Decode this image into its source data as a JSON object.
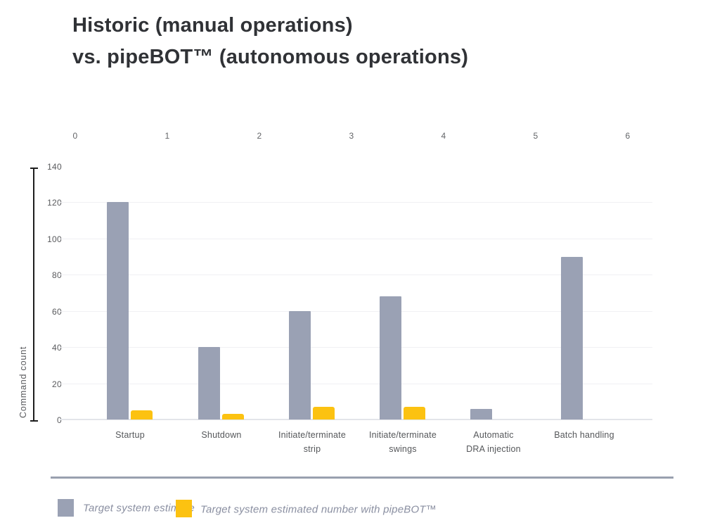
{
  "title": {
    "line1": "Historic (manual operations)",
    "line2": "vs. pipeBOT™ (autonomous operations)"
  },
  "chart_data": {
    "type": "bar",
    "title": "Historic (manual operations) vs. pipeBOT™ (autonomous operations)",
    "categories": [
      "Startup",
      "Shutdown",
      "Initiate/terminate strip",
      "Initiate/terminate swings",
      "Automatic DRA injection",
      "Batch handling"
    ],
    "category_display": [
      [
        "Startup"
      ],
      [
        "Shutdown"
      ],
      [
        "Initiate/terminate",
        "strip"
      ],
      [
        "Initiate/terminate",
        "swings"
      ],
      [
        "Automatic",
        "DRA injection"
      ],
      [
        "Batch handling"
      ]
    ],
    "series": [
      {
        "name": "Target system estimate",
        "color": "#9aa1b4",
        "values": [
          120,
          40,
          60,
          68,
          6,
          90
        ]
      },
      {
        "name": "Target system estimated number with pipeBOT™",
        "color": "#fcc211",
        "values": [
          5,
          3,
          7,
          7,
          0,
          0
        ]
      }
    ],
    "ylabel": "Command count",
    "xlabel": "",
    "ylim": [
      0,
      140
    ],
    "yticks": [
      0,
      20,
      40,
      60,
      80,
      100,
      120,
      140
    ],
    "top_axis_ticks": [
      "0",
      "1",
      "2",
      "3",
      "4",
      "5",
      "6"
    ],
    "grid": "horizontal",
    "legend_position": "bottom"
  },
  "colors": {
    "title_text": "#303236",
    "axis_text": "#58595c",
    "legend_text": "#8a8fa1",
    "divider": "#99a0af",
    "gridline": "#f0f0f3"
  }
}
